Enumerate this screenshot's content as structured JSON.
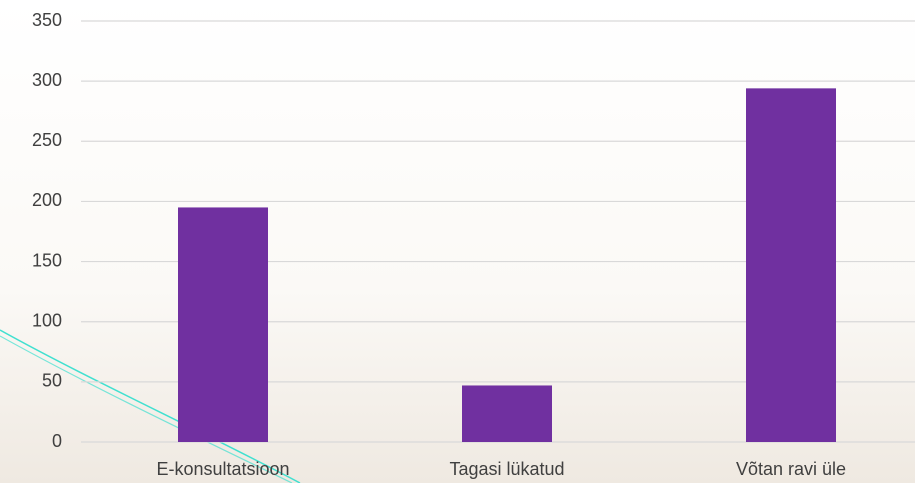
{
  "chart_data": {
    "type": "bar",
    "categories": [
      "E-konsultatsioon",
      "Tagasi lükatud",
      "Võtan ravi üle"
    ],
    "values": [
      195,
      47,
      294
    ],
    "color": "#7030a0",
    "ylim": [
      0,
      350
    ],
    "yticks": [
      0,
      50,
      100,
      150,
      200,
      250,
      300,
      350
    ],
    "grid": true
  }
}
